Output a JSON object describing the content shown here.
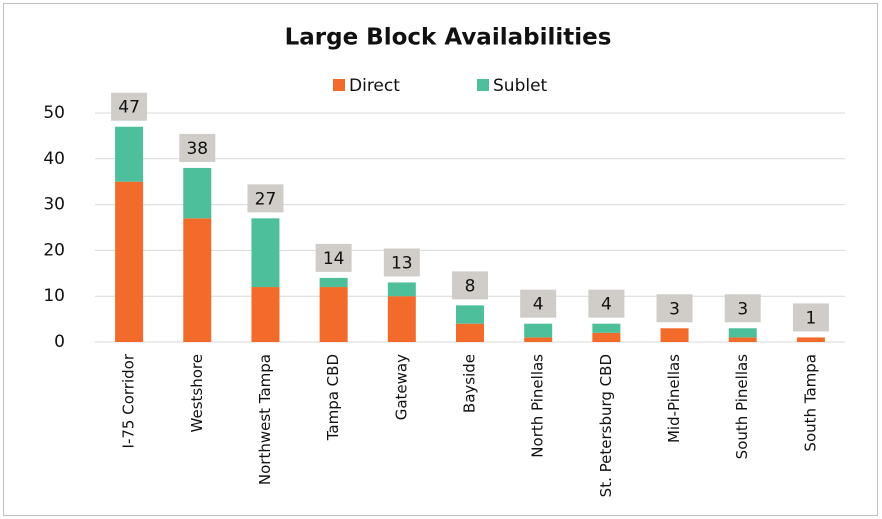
{
  "chart_data": {
    "type": "stacked_bar",
    "title": "Large Block Availabilities",
    "categories": [
      "I-75 Corridor",
      "Westshore",
      "Northwest Tampa",
      "Tampa CBD",
      "Gateway",
      "Bayside",
      "North Pinellas",
      "St. Petersburg CBD",
      "Mid-Pinellas",
      "South Pinellas",
      "South Tampa"
    ],
    "series": [
      {
        "name": "Direct",
        "color": "#f26b2b",
        "values": [
          35,
          27,
          12,
          12,
          10,
          4,
          1,
          2,
          3,
          1,
          1
        ]
      },
      {
        "name": "Sublet",
        "color": "#4dbf9a",
        "values": [
          12,
          11,
          15,
          2,
          3,
          4,
          3,
          2,
          0,
          2,
          0
        ]
      }
    ],
    "totals": [
      47,
      38,
      27,
      14,
      13,
      8,
      4,
      4,
      3,
      3,
      1
    ],
    "ylim": [
      0,
      50
    ],
    "yticks": [
      0,
      10,
      20,
      30,
      40,
      50
    ],
    "grid": true,
    "legend": "top"
  }
}
